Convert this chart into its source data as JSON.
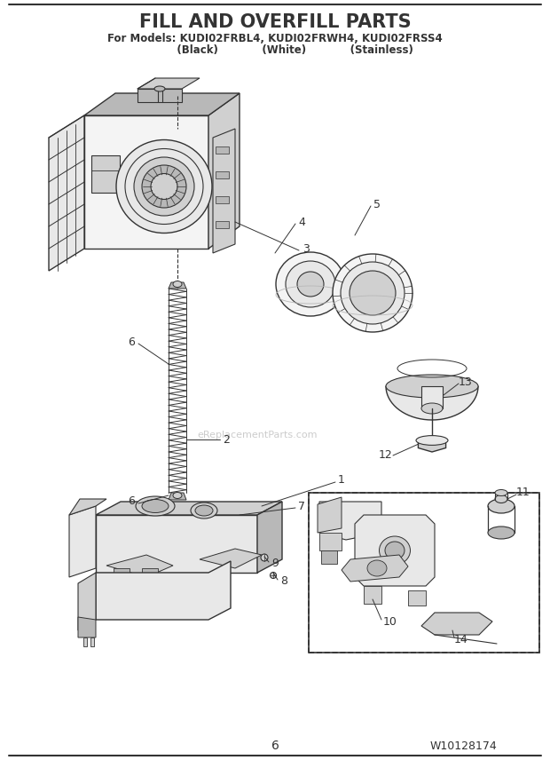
{
  "title": "FILL AND OVERFILL PARTS",
  "subtitle1": "For Models: KUDI02FRBL4, KUDI02FRWH4, KUDI02FRSS4",
  "subtitle2": "           (Black)            (White)            (Stainless)",
  "page_number": "6",
  "part_number": "W10128174",
  "watermark": "eReplacementParts.com",
  "bg": "#ffffff",
  "lc": "#333333",
  "gray1": "#e8e8e8",
  "gray2": "#d0d0d0",
  "gray3": "#b8b8b8",
  "gray4": "#f4f4f4"
}
